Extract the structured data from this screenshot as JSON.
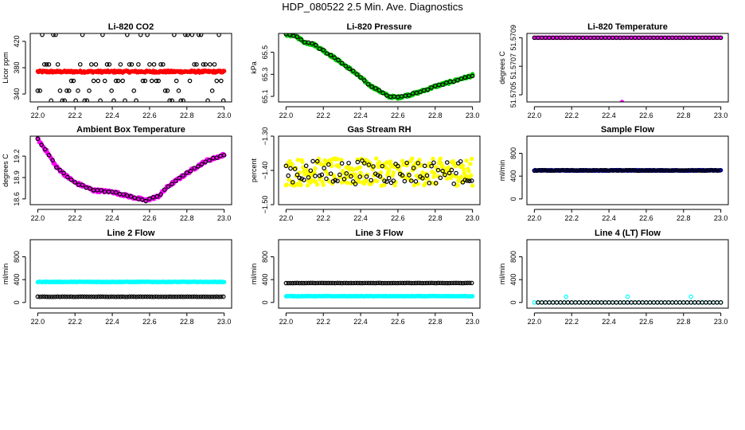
{
  "page": {
    "main_title": "HDP_080522  2.5 Min. Ave. Diagnostics"
  },
  "chart_data": [
    {
      "type": "scatter",
      "title": "Li-820 CO2",
      "xlabel": "",
      "ylabel": "Licor ppm",
      "xlim": [
        21.96,
        23.04
      ],
      "ylim": [
        328,
        432
      ],
      "x_ticks": [
        22.0,
        22.2,
        22.4,
        22.6,
        22.8,
        23.0
      ],
      "x_tick_labels": [
        "22.0",
        "22.2",
        "22.4",
        "22.6",
        "22.8",
        "23.0"
      ],
      "y_ticks": [
        340,
        380,
        420
      ],
      "y_tick_labels": [
        "340",
        "380",
        "420"
      ],
      "series": [
        {
          "name": "primary",
          "color": "#ff0000",
          "filled": true,
          "x": [
            22.0,
            23.0
          ],
          "pattern": "flat",
          "base": 374,
          "noise": 1.5
        },
        {
          "name": "secondary",
          "color": "#000000",
          "filled": false,
          "x": [
            22.0,
            23.0
          ],
          "pattern": "levels",
          "levels": [
            330,
            345,
            360,
            385,
            430
          ],
          "spacing": 0.012
        }
      ]
    },
    {
      "type": "scatter",
      "title": "Li-820 Pressure",
      "xlabel": "",
      "ylabel": "kPa",
      "xlim": [
        21.96,
        23.04
      ],
      "ylim": [
        65.05,
        65.67
      ],
      "x_ticks": [
        22.0,
        22.2,
        22.4,
        22.6,
        22.8,
        23.0
      ],
      "x_tick_labels": [
        "22.0",
        "22.2",
        "22.4",
        "22.6",
        "22.8",
        "23.0"
      ],
      "y_ticks": [
        65.1,
        65.3,
        65.5
      ],
      "y_tick_labels": [
        "65.1",
        "65.3",
        "65.5"
      ],
      "series": [
        {
          "name": "primary",
          "color": "#00cc00",
          "filled": true,
          "x": [
            22.0,
            23.0
          ],
          "pattern": "curve",
          "curve_x": [
            22.0,
            22.05,
            22.1,
            22.15,
            22.25,
            22.35,
            22.45,
            22.55,
            22.6,
            22.7,
            22.8,
            22.9,
            23.0
          ],
          "curve_y": [
            65.66,
            65.65,
            65.59,
            65.57,
            65.46,
            65.34,
            65.2,
            65.1,
            65.09,
            65.13,
            65.19,
            65.24,
            65.29
          ],
          "noise": 0.012
        },
        {
          "name": "secondary",
          "color": "#000000",
          "filled": false,
          "x": [
            22.0,
            23.0
          ],
          "pattern": "curve",
          "curve_x": [
            22.0,
            22.05,
            22.1,
            22.15,
            22.25,
            22.35,
            22.45,
            22.55,
            22.6,
            22.7,
            22.8,
            22.9,
            23.0
          ],
          "curve_y": [
            65.66,
            65.65,
            65.59,
            65.57,
            65.46,
            65.34,
            65.2,
            65.1,
            65.09,
            65.13,
            65.19,
            65.24,
            65.29
          ],
          "noise": 0.006,
          "spacing": 0.02
        }
      ]
    },
    {
      "type": "scatter",
      "title": "Li-820 Temperature",
      "xlabel": "",
      "ylabel": "degrees C",
      "xlim": [
        21.96,
        23.04
      ],
      "ylim": [
        51.57045,
        51.57093
      ],
      "x_ticks": [
        22.0,
        22.2,
        22.4,
        22.6,
        22.8,
        23.0
      ],
      "x_tick_labels": [
        "22.0",
        "22.2",
        "22.4",
        "22.6",
        "22.8",
        "23.0"
      ],
      "y_ticks": [
        51.5705,
        51.5707,
        51.5709
      ],
      "y_tick_labels": [
        "51.5705",
        "51.5707",
        "51.5709"
      ],
      "series": [
        {
          "name": "primary",
          "color": "#ff00ff",
          "filled": true,
          "x": [
            22.0,
            23.0
          ],
          "pattern": "flat",
          "base": 51.5709,
          "noise": 0,
          "extra_points": [
            [
              22.47,
              51.57045
            ]
          ]
        },
        {
          "name": "secondary",
          "color": "#000000",
          "filled": false,
          "x": [
            22.0,
            23.0
          ],
          "pattern": "flat",
          "base": 51.5709,
          "noise": 0,
          "spacing": 0.02
        }
      ]
    },
    {
      "type": "scatter",
      "title": "Ambient Box Temperature",
      "xlabel": "",
      "ylabel": "degrees C",
      "xlim": [
        21.96,
        23.04
      ],
      "ylim": [
        18.52,
        19.48
      ],
      "x_ticks": [
        22.0,
        22.2,
        22.4,
        22.6,
        22.8,
        23.0
      ],
      "x_tick_labels": [
        "22.0",
        "22.2",
        "22.4",
        "22.6",
        "22.8",
        "23.0"
      ],
      "y_ticks": [
        18.6,
        18.9,
        19.2
      ],
      "y_tick_labels": [
        "18.6",
        "18.9",
        "19.2"
      ],
      "series": [
        {
          "name": "primary",
          "color": "#ff00ff",
          "filled": true,
          "x": [
            22.0,
            23.0
          ],
          "pattern": "curve",
          "curve_x": [
            22.0,
            22.05,
            22.1,
            22.15,
            22.2,
            22.3,
            22.4,
            22.5,
            22.58,
            22.65,
            22.7,
            22.8,
            22.9,
            23.0
          ],
          "curve_y": [
            19.44,
            19.26,
            19.05,
            18.93,
            18.83,
            18.72,
            18.7,
            18.63,
            18.58,
            18.64,
            18.78,
            18.96,
            19.13,
            19.22
          ],
          "noise": 0.02
        },
        {
          "name": "secondary",
          "color": "#000000",
          "filled": false,
          "x": [
            22.0,
            23.0
          ],
          "pattern": "curve",
          "curve_x": [
            22.0,
            22.05,
            22.1,
            22.15,
            22.2,
            22.3,
            22.4,
            22.5,
            22.58,
            22.65,
            22.7,
            22.8,
            22.9,
            23.0
          ],
          "curve_y": [
            19.44,
            19.26,
            19.05,
            18.93,
            18.83,
            18.72,
            18.7,
            18.63,
            18.58,
            18.64,
            18.78,
            18.96,
            19.13,
            19.22
          ],
          "noise": 0.01,
          "spacing": 0.02
        }
      ]
    },
    {
      "type": "scatter",
      "title": "Gas Stream RH",
      "xlabel": "",
      "ylabel": "percent",
      "xlim": [
        21.96,
        23.04
      ],
      "ylim": [
        -1.5,
        -1.3
      ],
      "x_ticks": [
        22.0,
        22.2,
        22.4,
        22.6,
        22.8,
        23.0
      ],
      "x_tick_labels": [
        "22.0",
        "22.2",
        "22.4",
        "22.6",
        "22.8",
        "23.0"
      ],
      "y_ticks": [
        -1.5,
        -1.4,
        -1.3
      ],
      "y_tick_labels": [
        "−1.50",
        "−1.40",
        "−1.30"
      ],
      "series": [
        {
          "name": "primary",
          "color": "#ffff00",
          "filled": true,
          "x": [
            22.0,
            23.0
          ],
          "pattern": "flat",
          "base": -1.405,
          "noise": 0.04
        },
        {
          "name": "secondary",
          "color": "#000000",
          "filled": false,
          "x": [
            22.0,
            23.0
          ],
          "pattern": "flat",
          "base": -1.405,
          "noise": 0.035,
          "spacing": 0.012
        }
      ]
    },
    {
      "type": "scatter",
      "title": "Sample Flow",
      "xlabel": "",
      "ylabel": "ml/min",
      "xlim": [
        21.96,
        23.04
      ],
      "ylim": [
        -100,
        1100
      ],
      "x_ticks": [
        22.0,
        22.2,
        22.4,
        22.6,
        22.8,
        23.0
      ],
      "x_tick_labels": [
        "22.0",
        "22.2",
        "22.4",
        "22.6",
        "22.8",
        "23.0"
      ],
      "y_ticks": [
        0,
        400,
        800
      ],
      "y_tick_labels": [
        "0",
        "400",
        "800"
      ],
      "series": [
        {
          "name": "primary",
          "color": "#0000ff",
          "filled": true,
          "x": [
            22.0,
            23.0
          ],
          "pattern": "flat",
          "base": 500,
          "noise": 6
        },
        {
          "name": "secondary",
          "color": "#000000",
          "filled": false,
          "x": [
            22.0,
            23.0
          ],
          "pattern": "flat",
          "base": 500,
          "noise": 4,
          "spacing": 0.012
        }
      ]
    },
    {
      "type": "scatter",
      "title": "Line 2 Flow",
      "xlabel": "",
      "ylabel": "ml/min",
      "xlim": [
        21.96,
        23.04
      ],
      "ylim": [
        -100,
        1100
      ],
      "x_ticks": [
        22.0,
        22.2,
        22.4,
        22.6,
        22.8,
        23.0
      ],
      "x_tick_labels": [
        "22.0",
        "22.2",
        "22.4",
        "22.6",
        "22.8",
        "23.0"
      ],
      "y_ticks": [
        0,
        400,
        800
      ],
      "y_tick_labels": [
        "0",
        "400",
        "800"
      ],
      "series": [
        {
          "name": "primary",
          "color": "#00ffff",
          "filled": true,
          "x": [
            22.0,
            23.0
          ],
          "pattern": "flat",
          "base": 360,
          "noise": 5
        },
        {
          "name": "secondary",
          "color": "#000000",
          "filled": false,
          "x": [
            22.0,
            23.0
          ],
          "pattern": "flat",
          "base": 100,
          "noise": 2,
          "spacing": 0.012
        }
      ]
    },
    {
      "type": "scatter",
      "title": "Line 3 Flow",
      "xlabel": "",
      "ylabel": "ml/min",
      "xlim": [
        21.96,
        23.04
      ],
      "ylim": [
        -100,
        1100
      ],
      "x_ticks": [
        22.0,
        22.2,
        22.4,
        22.6,
        22.8,
        23.0
      ],
      "x_tick_labels": [
        "22.0",
        "22.2",
        "22.4",
        "22.6",
        "22.8",
        "23.0"
      ],
      "y_ticks": [
        0,
        400,
        800
      ],
      "y_tick_labels": [
        "0",
        "400",
        "800"
      ],
      "series": [
        {
          "name": "primary",
          "color": "#00ffff",
          "filled": true,
          "x": [
            22.0,
            23.0
          ],
          "pattern": "flat",
          "base": 110,
          "noise": 3
        },
        {
          "name": "secondary",
          "color": "#000000",
          "filled": false,
          "x": [
            22.0,
            23.0
          ],
          "pattern": "flat",
          "base": 340,
          "noise": 2,
          "spacing": 0.012
        }
      ]
    },
    {
      "type": "scatter",
      "title": "Line 4 (LT) Flow",
      "xlabel": "",
      "ylabel": "ml/min",
      "xlim": [
        21.96,
        23.04
      ],
      "ylim": [
        -100,
        1100
      ],
      "x_ticks": [
        22.0,
        22.2,
        22.4,
        22.6,
        22.8,
        23.0
      ],
      "x_tick_labels": [
        "22.0",
        "22.2",
        "22.4",
        "22.6",
        "22.8",
        "23.0"
      ],
      "y_ticks": [
        0,
        400,
        800
      ],
      "y_tick_labels": [
        "0",
        "400",
        "800"
      ],
      "series": [
        {
          "name": "primary",
          "color": "#00ffff",
          "filled": false,
          "x": [
            22.0,
            23.0
          ],
          "pattern": "flat",
          "base": 0,
          "noise": 0,
          "spacing": 0.02,
          "extra_points": [
            [
              22.17,
              100
            ],
            [
              22.5,
              100
            ],
            [
              22.84,
              100
            ]
          ]
        },
        {
          "name": "secondary",
          "color": "#000000",
          "filled": false,
          "x": [
            22.02,
            23.0
          ],
          "pattern": "flat",
          "base": 0,
          "noise": 0,
          "spacing": 0.02
        }
      ]
    }
  ]
}
